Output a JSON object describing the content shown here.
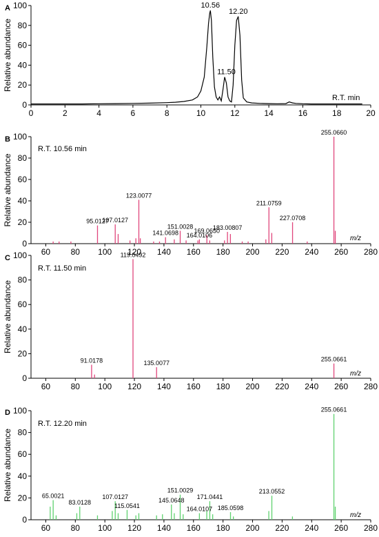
{
  "chart_data": [
    {
      "panel": "A",
      "type": "line",
      "ylabel": "Relative abundance",
      "xunit": "R.T.  min",
      "xlim": [
        0,
        20
      ],
      "ylim": [
        0,
        100
      ],
      "xticks": [
        0,
        2,
        4,
        6,
        8,
        10,
        12,
        14,
        16,
        18,
        20
      ],
      "yticks": [
        0,
        20,
        40,
        60,
        80,
        100
      ],
      "color": "#000000",
      "series": [
        {
          "x": [
            0,
            1,
            2,
            3,
            4,
            5,
            6,
            7,
            8,
            8.5,
            9,
            9.5,
            9.8,
            10.0,
            10.2,
            10.35,
            10.45,
            10.52,
            10.56,
            10.62,
            10.7,
            10.8,
            10.9,
            11.0,
            11.1,
            11.2,
            11.3,
            11.4,
            11.5,
            11.6,
            11.7,
            11.8,
            11.9,
            12.0,
            12.1,
            12.2,
            12.3,
            12.4,
            12.5,
            12.7,
            13,
            13.5,
            14,
            14.5,
            15,
            15.2,
            15.4,
            15.6,
            16,
            16.5,
            17,
            18,
            19,
            19.5
          ],
          "y": [
            1,
            1,
            1,
            1,
            1.2,
            1.3,
            1.5,
            1.8,
            2.3,
            2.7,
            3.5,
            5,
            8,
            14,
            28,
            58,
            82,
            92,
            95,
            85,
            48,
            18,
            8,
            5,
            8,
            4,
            15,
            28,
            22,
            8,
            4,
            3,
            20,
            60,
            85,
            89,
            70,
            25,
            7,
            3,
            2,
            1.5,
            1.3,
            1.2,
            1.3,
            3,
            2,
            1.5,
            1.2,
            1,
            1,
            1,
            1,
            1
          ]
        }
      ],
      "peak_labels": [
        {
          "x": 10.56,
          "y": 95,
          "text": "10.56"
        },
        {
          "x": 11.5,
          "y": 28,
          "text": "11.50"
        },
        {
          "x": 12.2,
          "y": 89,
          "text": "12.20"
        }
      ]
    },
    {
      "panel": "B",
      "type": "bar",
      "rt_label": "R.T. 10.56  min",
      "ylabel": "Relative abundance",
      "xunit": "m/z",
      "xlim": [
        50,
        280
      ],
      "ylim": [
        0,
        100
      ],
      "xticks": [
        60,
        80,
        100,
        120,
        140,
        160,
        180,
        200,
        220,
        240,
        260,
        280
      ],
      "yticks": [
        0,
        20,
        40,
        60,
        80,
        100
      ],
      "color": "#e0457b",
      "peaks": [
        {
          "mz": 65,
          "y": 2
        },
        {
          "mz": 69,
          "y": 2
        },
        {
          "mz": 77,
          "y": 2
        },
        {
          "mz": 95.0127,
          "y": 17,
          "label": "95.0127"
        },
        {
          "mz": 107.0127,
          "y": 18,
          "label": "107.0127"
        },
        {
          "mz": 109,
          "y": 9
        },
        {
          "mz": 117,
          "y": 3
        },
        {
          "mz": 121,
          "y": 5
        },
        {
          "mz": 123.0077,
          "y": 41,
          "label": "123.0077"
        },
        {
          "mz": 124,
          "y": 5
        },
        {
          "mz": 133,
          "y": 2
        },
        {
          "mz": 137,
          "y": 2
        },
        {
          "mz": 141.0698,
          "y": 6,
          "label": "141.0698"
        },
        {
          "mz": 147,
          "y": 4
        },
        {
          "mz": 151.0028,
          "y": 12,
          "label": "151.0028"
        },
        {
          "mz": 155,
          "y": 3
        },
        {
          "mz": 163,
          "y": 3
        },
        {
          "mz": 164.0106,
          "y": 4,
          "label": "164.0106"
        },
        {
          "mz": 169.065,
          "y": 8,
          "label": "169.0650"
        },
        {
          "mz": 171,
          "y": 3
        },
        {
          "mz": 181,
          "y": 3
        },
        {
          "mz": 183.00807,
          "y": 11,
          "label": "183.00807"
        },
        {
          "mz": 185,
          "y": 9
        },
        {
          "mz": 193,
          "y": 2
        },
        {
          "mz": 197,
          "y": 2
        },
        {
          "mz": 209,
          "y": 4
        },
        {
          "mz": 211.0759,
          "y": 34,
          "label": "211.0759"
        },
        {
          "mz": 213,
          "y": 10
        },
        {
          "mz": 227.0708,
          "y": 20,
          "label": "227.0708"
        },
        {
          "mz": 237,
          "y": 2
        },
        {
          "mz": 255.066,
          "y": 100,
          "label": "255.0660"
        },
        {
          "mz": 256,
          "y": 12
        }
      ]
    },
    {
      "panel": "C",
      "type": "bar",
      "rt_label": "R.T. 11.50 min",
      "ylabel": "Relative abundance",
      "xunit": "m/z",
      "xlim": [
        50,
        280
      ],
      "ylim": [
        0,
        100
      ],
      "xticks": [
        60,
        80,
        100,
        120,
        140,
        160,
        180,
        200,
        220,
        240,
        260,
        280
      ],
      "yticks": [
        0,
        20,
        40,
        60,
        80,
        100
      ],
      "color": "#e0457b",
      "peaks": [
        {
          "mz": 91.0178,
          "y": 11,
          "label": "91.0178"
        },
        {
          "mz": 93,
          "y": 3
        },
        {
          "mz": 119.0492,
          "y": 97,
          "label": "119.0492"
        },
        {
          "mz": 135.0077,
          "y": 9,
          "label": "135.0077"
        },
        {
          "mz": 255.0661,
          "y": 12,
          "label": "255.0661"
        }
      ]
    },
    {
      "panel": "D",
      "type": "bar",
      "rt_label": "R.T. 12.20 min",
      "ylabel": "Relative abundance",
      "xunit": "m/z",
      "xlim": [
        50,
        280
      ],
      "ylim": [
        0,
        100
      ],
      "xticks": [
        60,
        80,
        100,
        120,
        140,
        160,
        180,
        200,
        220,
        240,
        260,
        280
      ],
      "yticks": [
        0,
        20,
        40,
        60,
        80,
        100
      ],
      "color": "#5ed16e",
      "peaks": [
        {
          "mz": 63,
          "y": 12
        },
        {
          "mz": 65.0021,
          "y": 18,
          "label": "65.0021"
        },
        {
          "mz": 67,
          "y": 4
        },
        {
          "mz": 81,
          "y": 6
        },
        {
          "mz": 83.0128,
          "y": 12,
          "label": "83.0128"
        },
        {
          "mz": 95,
          "y": 4
        },
        {
          "mz": 105,
          "y": 8
        },
        {
          "mz": 107.0127,
          "y": 17,
          "label": "107.0127"
        },
        {
          "mz": 109,
          "y": 6
        },
        {
          "mz": 115.0541,
          "y": 9,
          "label": "115.0541"
        },
        {
          "mz": 121,
          "y": 4
        },
        {
          "mz": 123,
          "y": 6
        },
        {
          "mz": 135,
          "y": 4
        },
        {
          "mz": 139,
          "y": 5
        },
        {
          "mz": 145.0648,
          "y": 14,
          "label": "145.0648"
        },
        {
          "mz": 147,
          "y": 6
        },
        {
          "mz": 151.0029,
          "y": 23,
          "label": "151.0029"
        },
        {
          "mz": 153,
          "y": 5
        },
        {
          "mz": 164.0107,
          "y": 6,
          "label": "164.0107"
        },
        {
          "mz": 169,
          "y": 8
        },
        {
          "mz": 171.0441,
          "y": 17,
          "label": "171.0441"
        },
        {
          "mz": 173,
          "y": 5
        },
        {
          "mz": 185.0598,
          "y": 7,
          "label": "185.0598"
        },
        {
          "mz": 187,
          "y": 3
        },
        {
          "mz": 211,
          "y": 8
        },
        {
          "mz": 213.0552,
          "y": 22,
          "label": "213.0552"
        },
        {
          "mz": 227,
          "y": 3
        },
        {
          "mz": 255.0661,
          "y": 97,
          "label": "255.0661"
        },
        {
          "mz": 256,
          "y": 12
        }
      ]
    }
  ]
}
